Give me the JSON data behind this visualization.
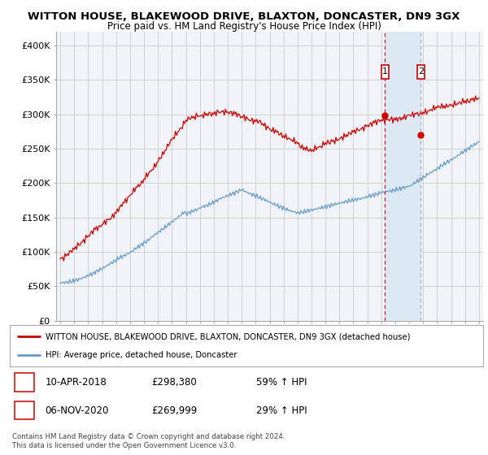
{
  "title": "WITTON HOUSE, BLAKEWOOD DRIVE, BLAXTON, DONCASTER, DN9 3GX",
  "subtitle": "Price paid vs. HM Land Registry's House Price Index (HPI)",
  "legend_line1": "WITTON HOUSE, BLAKEWOOD DRIVE, BLAXTON, DONCASTER, DN9 3GX (detached house)",
  "legend_line2": "HPI: Average price, detached house, Doncaster",
  "annotation1_date": "10-APR-2018",
  "annotation1_price": "£298,380",
  "annotation1_hpi": "59% ↑ HPI",
  "annotation2_date": "06-NOV-2020",
  "annotation2_price": "£269,999",
  "annotation2_hpi": "29% ↑ HPI",
  "footnote": "Contains HM Land Registry data © Crown copyright and database right 2024.\nThis data is licensed under the Open Government Licence v3.0.",
  "hpi_color": "#6699cc",
  "price_color": "#cc0000",
  "dashed1_color": "#cc0000",
  "dashed2_color": "#aaaaaa",
  "background_color": "#ffffff",
  "grid_color": "#cccccc",
  "plot_bg": "#f0f4f8",
  "span_color": "#dde8f5",
  "ylim": [
    0,
    420000
  ],
  "yticks": [
    0,
    50000,
    100000,
    150000,
    200000,
    250000,
    300000,
    350000,
    400000
  ],
  "ytick_labels": [
    "£0",
    "£50K",
    "£100K",
    "£150K",
    "£200K",
    "£250K",
    "£300K",
    "£350K",
    "£400K"
  ],
  "sale1_year": 2018.27,
  "sale1_price": 298380,
  "sale2_year": 2020.84,
  "sale2_price": 269999
}
